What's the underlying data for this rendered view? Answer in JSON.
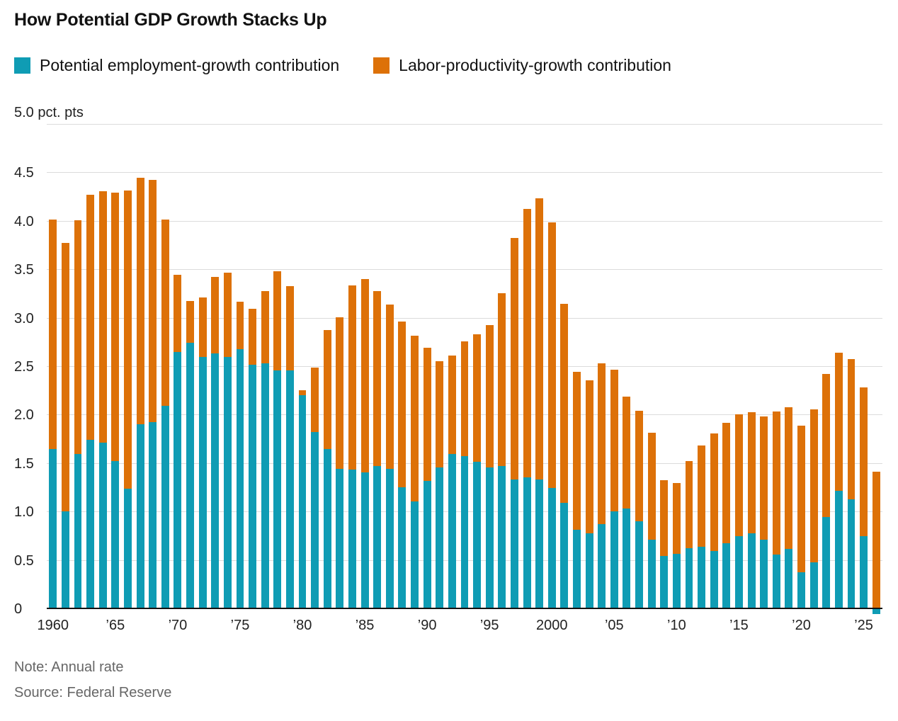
{
  "title": "How Potential GDP Growth Stacks Up",
  "legend": [
    {
      "label": "Potential employment-growth contribution",
      "color": "#0f9cb4"
    },
    {
      "label": "Labor-productivity-growth contribution",
      "color": "#dd7108"
    }
  ],
  "note": "Note: Annual rate",
  "source": "Source: Federal Reserve",
  "chart_data": {
    "type": "bar",
    "stacked": true,
    "title": "How Potential GDP Growth Stacks Up",
    "unit_label": "5.0 pct. pts",
    "ylabel": "pct. pts",
    "ylim": [
      0,
      5.0
    ],
    "ytick_step": 0.5,
    "grid": true,
    "legend_position": "top",
    "years": [
      1960,
      1961,
      1962,
      1963,
      1964,
      1965,
      1966,
      1967,
      1968,
      1969,
      1970,
      1971,
      1972,
      1973,
      1974,
      1975,
      1976,
      1977,
      1978,
      1979,
      1980,
      1981,
      1982,
      1983,
      1984,
      1985,
      1986,
      1987,
      1988,
      1989,
      1990,
      1991,
      1992,
      1993,
      1994,
      1995,
      1996,
      1997,
      1998,
      1999,
      2000,
      2001,
      2002,
      2003,
      2004,
      2005,
      2006,
      2007,
      2008,
      2009,
      2010,
      2011,
      2012,
      2013,
      2014,
      2015,
      2016,
      2017,
      2018,
      2019,
      2020,
      2021,
      2022,
      2023,
      2024,
      2025,
      2026
    ],
    "series": [
      {
        "name": "Potential employment-growth contribution",
        "color": "#0f9cb4",
        "values": [
          1.65,
          1.01,
          1.6,
          1.75,
          1.72,
          1.53,
          1.24,
          1.91,
          1.93,
          2.1,
          2.65,
          2.75,
          2.6,
          2.64,
          2.6,
          2.68,
          2.52,
          2.54,
          2.46,
          2.46,
          2.21,
          1.83,
          1.65,
          1.45,
          1.44,
          1.41,
          1.48,
          1.45,
          1.26,
          1.11,
          1.32,
          1.46,
          1.6,
          1.58,
          1.52,
          1.46,
          1.48,
          1.34,
          1.36,
          1.34,
          1.25,
          1.1,
          0.82,
          0.78,
          0.88,
          1.01,
          1.04,
          0.91,
          0.72,
          0.55,
          0.57,
          0.63,
          0.64,
          0.6,
          0.68,
          0.75,
          0.78,
          0.72,
          0.56,
          0.62,
          0.38,
          0.48,
          0.95,
          1.22,
          1.13,
          0.75,
          -0.05
        ]
      },
      {
        "name": "Labor-productivity-growth contribution",
        "color": "#dd7108",
        "values": [
          2.37,
          2.77,
          2.41,
          2.53,
          2.59,
          2.77,
          3.08,
          2.54,
          2.5,
          1.92,
          0.8,
          0.43,
          0.62,
          0.79,
          0.87,
          0.49,
          0.58,
          0.74,
          1.03,
          0.87,
          0.05,
          0.66,
          1.23,
          1.56,
          1.9,
          2.0,
          1.8,
          1.69,
          1.71,
          1.71,
          1.38,
          1.1,
          1.02,
          1.18,
          1.32,
          1.47,
          1.78,
          2.49,
          2.77,
          2.9,
          2.74,
          2.05,
          1.63,
          1.58,
          1.66,
          1.46,
          1.15,
          1.14,
          1.1,
          0.78,
          0.73,
          0.9,
          1.05,
          1.21,
          1.24,
          1.26,
          1.25,
          1.27,
          1.48,
          1.46,
          1.51,
          1.58,
          1.48,
          1.43,
          1.45,
          1.54,
          1.42
        ]
      }
    ],
    "xticks": [
      {
        "year": 1960,
        "label": "1960"
      },
      {
        "year": 1965,
        "label": "’65"
      },
      {
        "year": 1970,
        "label": "’70"
      },
      {
        "year": 1975,
        "label": "’75"
      },
      {
        "year": 1980,
        "label": "’80"
      },
      {
        "year": 1985,
        "label": "’85"
      },
      {
        "year": 1990,
        "label": "’90"
      },
      {
        "year": 1995,
        "label": "’95"
      },
      {
        "year": 2000,
        "label": "2000"
      },
      {
        "year": 2005,
        "label": "’05"
      },
      {
        "year": 2010,
        "label": "’10"
      },
      {
        "year": 2015,
        "label": "’15"
      },
      {
        "year": 2020,
        "label": "’20"
      },
      {
        "year": 2025,
        "label": "’25"
      }
    ]
  }
}
